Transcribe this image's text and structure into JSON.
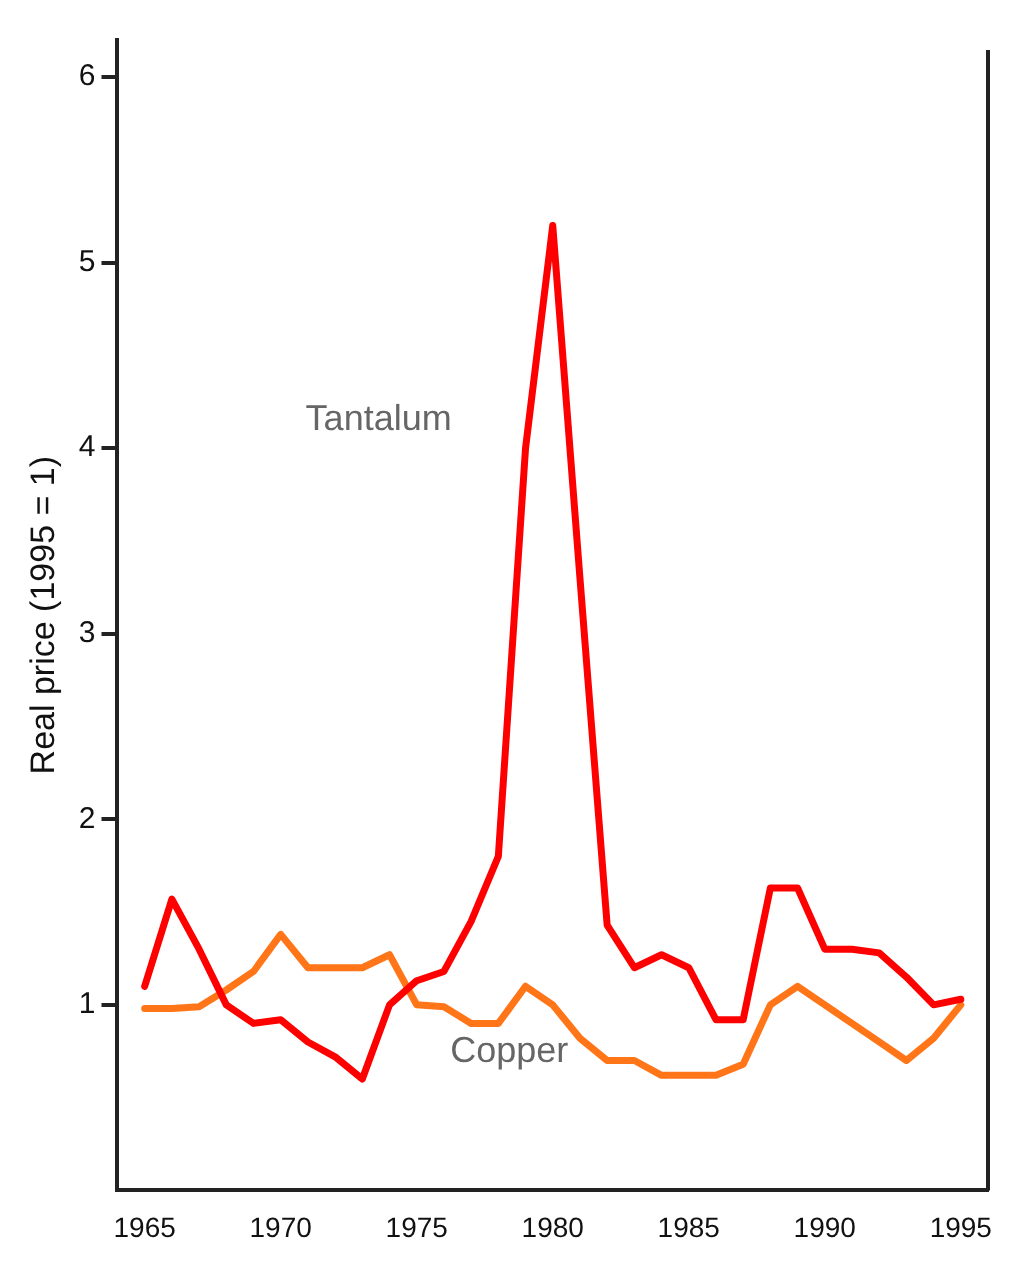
{
  "chart_data": {
    "type": "line",
    "ylabel": "Real price (1995 = 1)",
    "x": [
      1965,
      1966,
      1967,
      1968,
      1969,
      1970,
      1971,
      1972,
      1973,
      1974,
      1975,
      1976,
      1977,
      1978,
      1979,
      1980,
      1981,
      1982,
      1983,
      1984,
      1985,
      1986,
      1987,
      1988,
      1989,
      1990,
      1991,
      1992,
      1993,
      1994,
      1995
    ],
    "xlim": [
      1964,
      1996
    ],
    "xticks": [
      1965,
      1970,
      1975,
      1980,
      1985,
      1990,
      1995
    ],
    "ylim": [
      0,
      6.2
    ],
    "yticks": [
      1,
      2,
      3,
      4,
      5,
      6
    ],
    "grid": false,
    "legend": false,
    "marker": "none",
    "line_style": "solid",
    "series": [
      {
        "name": "Tantalum",
        "color": "#ff0000",
        "values": [
          1.1,
          1.57,
          1.3,
          1.0,
          0.9,
          0.92,
          0.8,
          0.72,
          0.6,
          1.0,
          1.13,
          1.18,
          1.45,
          1.8,
          4.0,
          5.2,
          3.3,
          1.43,
          1.2,
          1.27,
          1.2,
          0.92,
          0.92,
          1.63,
          1.63,
          1.3,
          1.3,
          1.28,
          1.15,
          1.0,
          1.03
        ]
      },
      {
        "name": "Copper",
        "color": "#ff7518",
        "values": [
          0.98,
          0.98,
          0.99,
          1.08,
          1.18,
          1.38,
          1.2,
          1.2,
          1.2,
          1.27,
          1.0,
          0.99,
          0.9,
          0.9,
          1.1,
          1.0,
          0.82,
          0.7,
          0.7,
          0.62,
          0.62,
          0.62,
          0.68,
          1.0,
          1.1,
          1.0,
          0.9,
          0.8,
          0.7,
          0.82,
          1.0
        ]
      }
    ]
  }
}
